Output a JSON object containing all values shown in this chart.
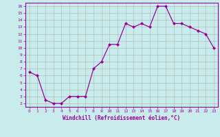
{
  "x": [
    0,
    1,
    2,
    3,
    4,
    5,
    6,
    7,
    8,
    9,
    10,
    11,
    12,
    13,
    14,
    15,
    16,
    17,
    18,
    19,
    20,
    21,
    22,
    23
  ],
  "y": [
    6.5,
    6.0,
    2.5,
    2.0,
    2.0,
    3.0,
    3.0,
    3.0,
    7.0,
    8.0,
    10.5,
    10.5,
    13.5,
    13.0,
    13.5,
    13.0,
    16.0,
    16.0,
    13.5,
    13.5,
    13.0,
    12.5,
    12.0,
    10.0
  ],
  "xlim": [
    -0.5,
    23.5
  ],
  "ylim": [
    1.5,
    16.5
  ],
  "yticks": [
    2,
    3,
    4,
    5,
    6,
    7,
    8,
    9,
    10,
    11,
    12,
    13,
    14,
    15,
    16
  ],
  "xticks": [
    0,
    1,
    2,
    3,
    4,
    5,
    6,
    7,
    8,
    9,
    10,
    11,
    12,
    13,
    14,
    15,
    16,
    17,
    18,
    19,
    20,
    21,
    22,
    23
  ],
  "xlabel": "Windchill (Refroidissement éolien,°C)",
  "line_color": "#990099",
  "marker": "D",
  "marker_size": 2,
  "bg_color": "#c8ecec",
  "grid_color": "#b0b0b0",
  "tick_label_color": "#990099",
  "spine_color": "#990099"
}
